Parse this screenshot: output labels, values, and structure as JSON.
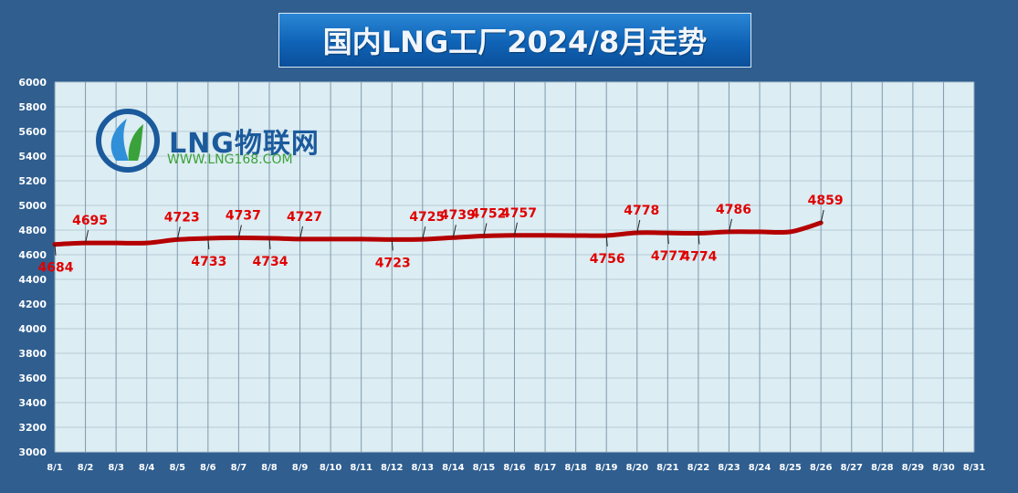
{
  "title": "国内LNG工厂2024/8月走势",
  "logo": {
    "name": "LNG物联网",
    "url": "WWW.LNG168.COM"
  },
  "colors": {
    "background": "#2f5e8f",
    "plot_area": "#dcedf3",
    "line": "#b40000",
    "label": "#e00000",
    "axis_text": "#ffffff"
  },
  "chart_data": {
    "type": "line",
    "title": "国内LNG工厂2024/8月走势",
    "categories": [
      "8/1",
      "8/2",
      "8/3",
      "8/4",
      "8/5",
      "8/6",
      "8/7",
      "8/8",
      "8/9",
      "8/10",
      "8/11",
      "8/12",
      "8/13",
      "8/14",
      "8/15",
      "8/16",
      "8/17",
      "8/18",
      "8/19",
      "8/20",
      "8/21",
      "8/22",
      "8/23",
      "8/24",
      "8/25",
      "8/26",
      "8/27",
      "8/28",
      "8/29",
      "8/30",
      "8/31"
    ],
    "series": [
      {
        "values": [
          4684,
          4695,
          4695,
          4695,
          4723,
          4733,
          4737,
          4734,
          4727,
          4727,
          4727,
          4723,
          4725,
          4739,
          4752,
          4757,
          4757,
          4756,
          4756,
          4778,
          4777,
          4774,
          4786,
          4786,
          4786,
          4859,
          null,
          null,
          null,
          null,
          null
        ]
      }
    ],
    "labels": [
      {
        "day": "8/1",
        "text": "4684",
        "pos": "below"
      },
      {
        "day": "8/2",
        "text": "4695",
        "pos": "above"
      },
      {
        "day": "8/5",
        "text": "4723",
        "pos": "above"
      },
      {
        "day": "8/6",
        "text": "4733",
        "pos": "below"
      },
      {
        "day": "8/7",
        "text": "4737",
        "pos": "above"
      },
      {
        "day": "8/8",
        "text": "4734",
        "pos": "below"
      },
      {
        "day": "8/9",
        "text": "4727",
        "pos": "above"
      },
      {
        "day": "8/12",
        "text": "4723",
        "pos": "below"
      },
      {
        "day": "8/13",
        "text": "4725",
        "pos": "above"
      },
      {
        "day": "8/14",
        "text": "4739",
        "pos": "above"
      },
      {
        "day": "8/15",
        "text": "4752",
        "pos": "above"
      },
      {
        "day": "8/16",
        "text": "4757",
        "pos": "above"
      },
      {
        "day": "8/19",
        "text": "4756",
        "pos": "below"
      },
      {
        "day": "8/20",
        "text": "4778",
        "pos": "above"
      },
      {
        "day": "8/21",
        "text": "4777",
        "pos": "below"
      },
      {
        "day": "8/22",
        "text": "4774",
        "pos": "below"
      },
      {
        "day": "8/23",
        "text": "4786",
        "pos": "above"
      },
      {
        "day": "8/26",
        "text": "4859",
        "pos": "above"
      }
    ],
    "yticks": [
      3000,
      3200,
      3400,
      3600,
      3800,
      4000,
      4200,
      4400,
      4600,
      4800,
      5000,
      5200,
      5400,
      5600,
      5800,
      6000
    ],
    "ylim": [
      3000,
      6000
    ],
    "xlabel": "",
    "ylabel": "",
    "grid": true,
    "legend": "none"
  }
}
